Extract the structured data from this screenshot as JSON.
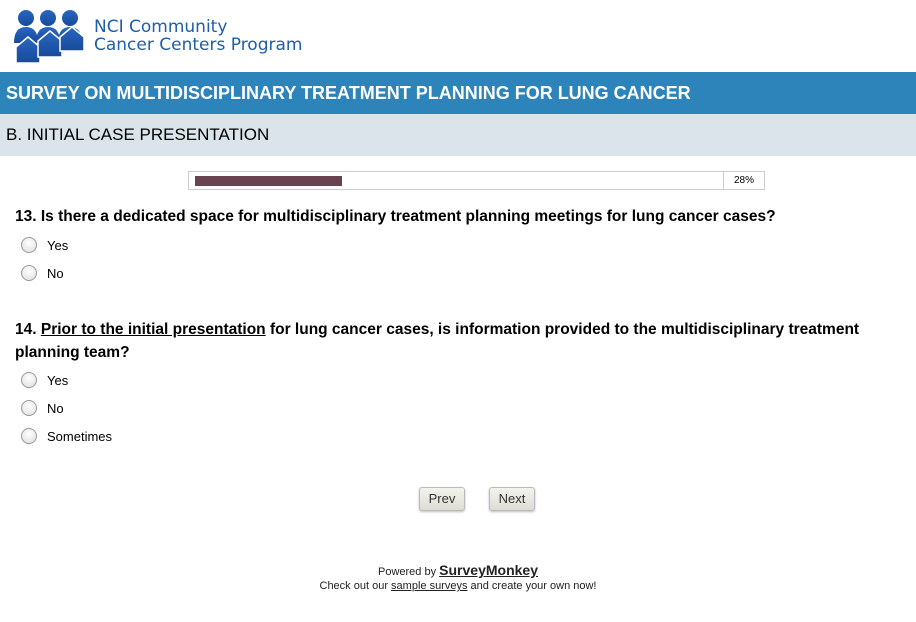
{
  "logo": {
    "text_line1": "NCI Community",
    "text_line2": "Cancer Centers Program"
  },
  "header": {
    "title": "SURVEY ON MULTIDISCIPLINARY TREATMENT PLANNING FOR LUNG CANCER",
    "section": "B. INITIAL CASE PRESENTATION"
  },
  "progress": {
    "percent": 28,
    "label": "28%",
    "color": "#6a4350"
  },
  "questions": [
    {
      "text": "13. Is there a dedicated space for multidisciplinary treatment planning meetings for lung cancer cases?",
      "options": [
        "Yes",
        "No"
      ]
    },
    {
      "number": "14. ",
      "underlined": "Prior to the initial presentation",
      "rest": " for lung cancer cases, is information provided to the multidisciplinary treatment planning team?",
      "options": [
        "Yes",
        "No",
        "Sometimes"
      ]
    }
  ],
  "nav": {
    "prev": "Prev",
    "next": "Next"
  },
  "footer": {
    "powered_by": "Powered by ",
    "brand": "SurveyMonkey",
    "line2_pre": "Check out our ",
    "line2_link": "sample surveys",
    "line2_post": " and create your own now!"
  }
}
